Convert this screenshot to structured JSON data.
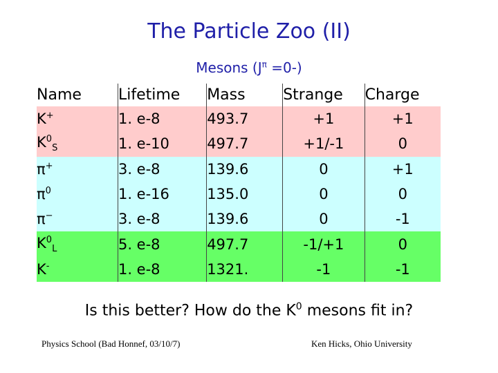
{
  "title": "The Particle Zoo (II)",
  "subtitle": {
    "prefix": "Mesons (J",
    "superscript": "π",
    "suffix": " =0-)"
  },
  "table": {
    "headers": {
      "name": "Name",
      "lifetime": "Lifetime",
      "mass": "Mass",
      "strange": "Strange",
      "charge": "Charge"
    },
    "rows": [
      {
        "name": "K",
        "name_sup": "+",
        "name_sub": "",
        "lifetime": "1. e-8",
        "mass": "493.7",
        "strange": "+1",
        "charge": "+1",
        "color": "#ffcccc"
      },
      {
        "name": "K",
        "name_sup": "0",
        "name_sub": "S",
        "lifetime": "1. e-10",
        "mass": "497.7",
        "strange": "+1/-1",
        "charge": "0",
        "color": "#ffcccc"
      },
      {
        "name": "π",
        "name_sup": "+",
        "name_sub": "",
        "lifetime": "3. e-8",
        "mass": "139.6",
        "strange": "0",
        "charge": "+1",
        "color": "#ccffff"
      },
      {
        "name": "π",
        "name_sup": "0",
        "name_sub": "",
        "lifetime": "1. e-16",
        "mass": "135.0",
        "strange": "0",
        "charge": "0",
        "color": "#ccffff"
      },
      {
        "name": "π",
        "name_sup": "−",
        "name_sub": "",
        "lifetime": "3. e-8",
        "mass": "139.6",
        "strange": "0",
        "charge": "-1",
        "color": "#ccffff"
      },
      {
        "name": "K",
        "name_sup": "0",
        "name_sub": "L",
        "lifetime": "5. e-8",
        "mass": "497.7",
        "strange": "-1/+1",
        "charge": "0",
        "color": "#66ff66"
      },
      {
        "name": "K",
        "name_sup": "-",
        "name_sub": "",
        "lifetime": "1. e-8",
        "mass": "1321.",
        "strange": "-1",
        "charge": "-1",
        "color": "#66ff66"
      }
    ]
  },
  "question": {
    "before": "Is this better?  How do the K",
    "sup": "0",
    "after": " mesons fit in?"
  },
  "footer": {
    "left": "Physics School (Bad Honnef, 03/10/7)",
    "right": "Ken Hicks, Ohio University"
  }
}
